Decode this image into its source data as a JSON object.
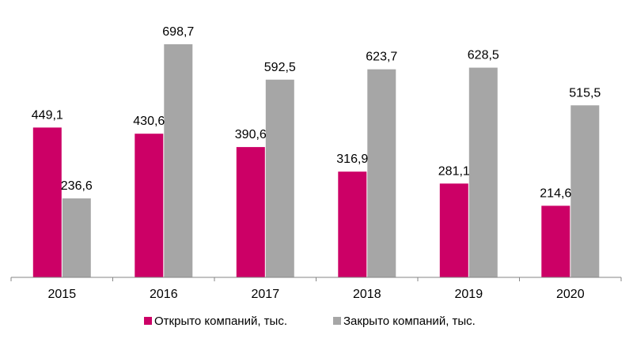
{
  "chart_data": {
    "type": "bar",
    "title": "",
    "xlabel": "",
    "ylabel": "",
    "categories": [
      "2015",
      "2016",
      "2017",
      "2018",
      "2019",
      "2020"
    ],
    "series": [
      {
        "name": "Открыто компаний, тыс.",
        "color": "#cc0066",
        "values": [
          449.1,
          430.6,
          390.6,
          316.9,
          281.1,
          214.6
        ],
        "labels": [
          "449,1",
          "430,6",
          "390,6",
          "316,9",
          "281,1",
          "214,6"
        ]
      },
      {
        "name": "Закрыто компаний, тыс.",
        "color": "#a6a6a6",
        "values": [
          236.6,
          698.7,
          592.5,
          623.7,
          628.5,
          515.5
        ],
        "labels": [
          "236,6",
          "698,7",
          "592,5",
          "623,7",
          "628,5",
          "515,5"
        ]
      }
    ],
    "ylim": [
      0,
      698.7
    ],
    "grid": false,
    "legend_position": "bottom",
    "axis_color": "#868686"
  }
}
